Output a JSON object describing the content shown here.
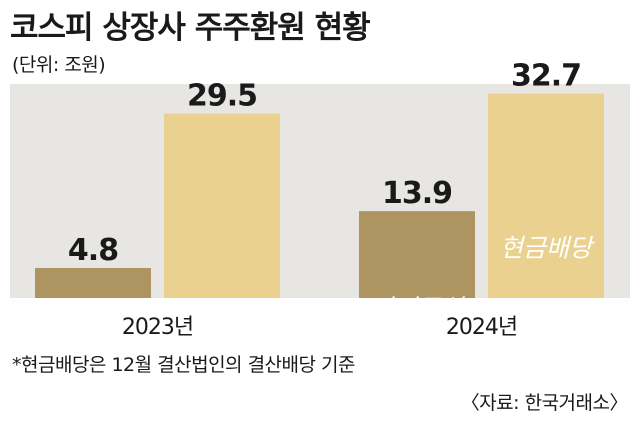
{
  "title": "코스피 상장사 주주환원 현황",
  "unit": "(단위: 조원)",
  "footnote": "*현금배당은 12월 결산법인의 결산배당 기준",
  "source": "〈자료: 한국거래소〉",
  "colors": {
    "buyback": "#ae9460",
    "dividend": "#ead18f",
    "panel": "#e8e6e2",
    "bar_label_text": "#ffffff"
  },
  "chart_data": {
    "type": "bar",
    "categories": [
      "2023년",
      "2024년"
    ],
    "series": [
      {
        "name": "자기주식 소각",
        "values": [
          4.8,
          13.9
        ],
        "color": "#ae9460"
      },
      {
        "name": "현금배당",
        "values": [
          29.5,
          32.7
        ],
        "color": "#ead18f"
      }
    ],
    "value_labels": [
      [
        "4.8",
        "29.5"
      ],
      [
        "13.9",
        "32.7"
      ]
    ],
    "inside_labels": {
      "buyback": [
        "자기주식",
        "소각"
      ],
      "dividend": "현금배당"
    },
    "title": "코스피 상장사 주주환원 현황",
    "xlabel": "",
    "ylabel": "",
    "grid": false
  }
}
